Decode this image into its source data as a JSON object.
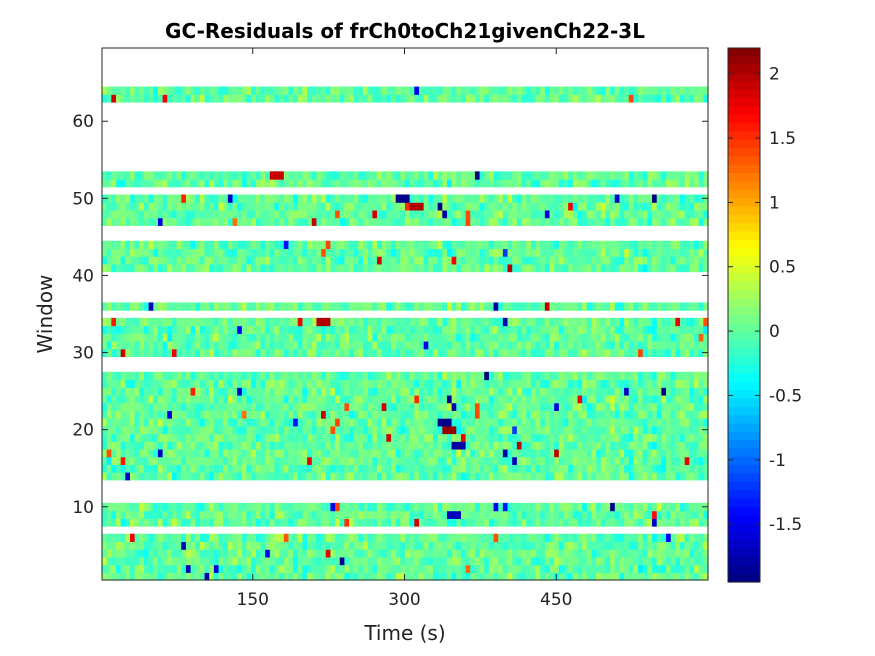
{
  "chart_data": {
    "type": "heatmap",
    "title": "GC-Residuals of frCh0toCh21givenCh22-3L",
    "xlabel": "Time (s)",
    "ylabel": "Window",
    "x_range": [
      1,
      600
    ],
    "y_range": [
      0.5,
      69.5
    ],
    "x_ticks": [
      150,
      300,
      450
    ],
    "y_ticks": [
      10,
      20,
      30,
      40,
      50,
      60
    ],
    "colorbar": {
      "colormap": "jet",
      "range": [
        -1.95,
        2.2
      ],
      "ticks": [
        2,
        1.5,
        1,
        0.5,
        0,
        -0.5,
        -1,
        -1.5
      ],
      "tick_labels": [
        "2",
        "1.5",
        "1",
        "0.5",
        "0",
        "-0.5",
        "-1",
        "-1.5"
      ]
    },
    "window_blocks": [
      {
        "rows": [
          1,
          6
        ]
      },
      {
        "rows": [
          8,
          10
        ]
      },
      {
        "rows": [
          14,
          27
        ]
      },
      {
        "rows": [
          30,
          34
        ]
      },
      {
        "rows": [
          36,
          36
        ]
      },
      {
        "rows": [
          41,
          44
        ]
      },
      {
        "rows": [
          47,
          50
        ]
      },
      {
        "rows": [
          52,
          53
        ]
      },
      {
        "rows": [
          63,
          64
        ]
      }
    ],
    "hotspots": [
      {
        "time": 300,
        "window": 50,
        "value": -1.9
      },
      {
        "time": 310,
        "window": 49,
        "value": 2.0
      },
      {
        "time": 340,
        "window": 21,
        "value": -1.9
      },
      {
        "time": 345,
        "window": 20,
        "value": 2.1
      },
      {
        "time": 355,
        "window": 18,
        "value": -1.8
      },
      {
        "time": 220,
        "window": 34,
        "value": 2.0
      },
      {
        "time": 350,
        "window": 9,
        "value": -1.7
      },
      {
        "time": 172,
        "window": 53,
        "value": 1.9
      }
    ]
  }
}
